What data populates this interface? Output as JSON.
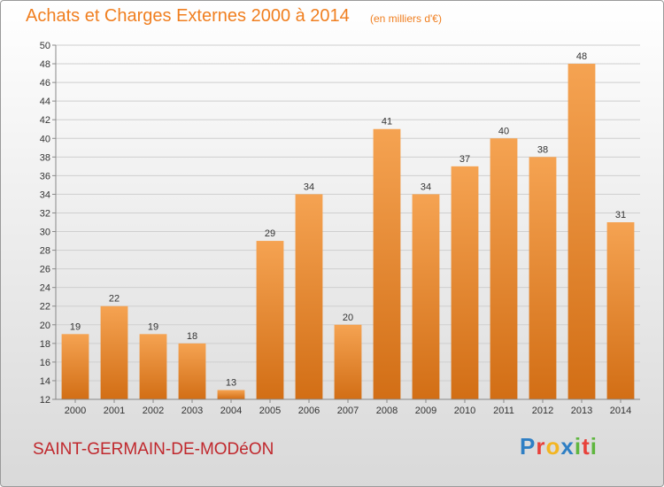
{
  "title": "Achats et Charges Externes 2000 à 2014",
  "subtitle": "(en milliers d'€)",
  "location": "SAINT-GERMAIN-DE-MODéON",
  "logo": {
    "text": "Proxiti",
    "letter_colors": [
      "#2f7fc4",
      "#e8413a",
      "#f3b521",
      "#2f7fc4",
      "#5fb63f",
      "#e8413a",
      "#5fb63f"
    ]
  },
  "colors": {
    "bar_top": "#f5a352",
    "bar_bottom": "#d26e15",
    "grid": "#cfcfcf",
    "axis": "#888888",
    "label": "#333333"
  },
  "chart_data": {
    "type": "bar",
    "categories": [
      "2000",
      "2001",
      "2002",
      "2003",
      "2004",
      "2005",
      "2006",
      "2007",
      "2008",
      "2009",
      "2010",
      "2011",
      "2012",
      "2013",
      "2014"
    ],
    "values": [
      19,
      22,
      19,
      18,
      13,
      29,
      34,
      20,
      41,
      34,
      37,
      40,
      38,
      48,
      31
    ],
    "ylim": [
      12,
      50
    ],
    "yticks": [
      12,
      14,
      16,
      18,
      20,
      22,
      24,
      26,
      28,
      30,
      32,
      34,
      36,
      38,
      40,
      42,
      44,
      46,
      48,
      50
    ],
    "grid": true,
    "xlabel": "",
    "ylabel": ""
  }
}
